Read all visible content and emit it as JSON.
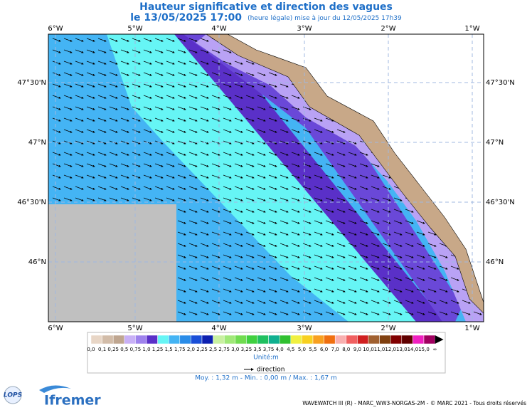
{
  "title": "Hauteur significative et direction des vagues",
  "date": "le 13/05/2025 17:00",
  "note": "(heure légale) mise à jour du 12/05/2025 17h39",
  "lon_labels": [
    "6°W",
    "5°W",
    "4°W",
    "3°W",
    "2°W",
    "1°W"
  ],
  "lat_labels": [
    "47°30'N",
    "47°N",
    "46°30'N",
    "46°N"
  ],
  "legend": {
    "labels": [
      "0,0",
      "0,1",
      "0,25",
      "0,5",
      "0,75",
      "1,0",
      "1,25",
      "1,5",
      "1,75",
      "2,0",
      "2,25",
      "2,5",
      "2,75",
      "3,0",
      "3,25",
      "3,5",
      "3,75",
      "4,0",
      "4,5",
      "5,0",
      "5,5",
      "6,0",
      "7,0",
      "8,0",
      "9,0",
      "10,0",
      "11,0",
      "12,0",
      "13,0",
      "14,0",
      "15,0",
      "∞"
    ],
    "colors": [
      "#e8d6c6",
      "#d2bca8",
      "#bfa690",
      "#c8b0f6",
      "#9e82ec",
      "#5a30c8",
      "#66f5f5",
      "#44b4f4",
      "#2a8ce8",
      "#1a4fd8",
      "#0c20b0",
      "#c8f0a0",
      "#a0e878",
      "#70dc50",
      "#40d040",
      "#20c060",
      "#10b090",
      "#30c030",
      "#f0f040",
      "#f8d020",
      "#f8a020",
      "#f07010",
      "#f8b0b0",
      "#f06060",
      "#d02020",
      "#a06030",
      "#804010",
      "#800000",
      "#600000",
      "#f020c0",
      "#a00060"
    ],
    "unit": "Unité:m",
    "direction": "direction",
    "stats": "Moy. : 1,32 m   -   Min. : 0,00 m / Max. : 1,67 m"
  },
  "footer": "WAVEWATCH III (R) - MARC_WW3-NORGAS-2M - © MARC 2021 - Tous droits réservés",
  "logos": [
    "LOPS",
    "Ifremer"
  ]
}
